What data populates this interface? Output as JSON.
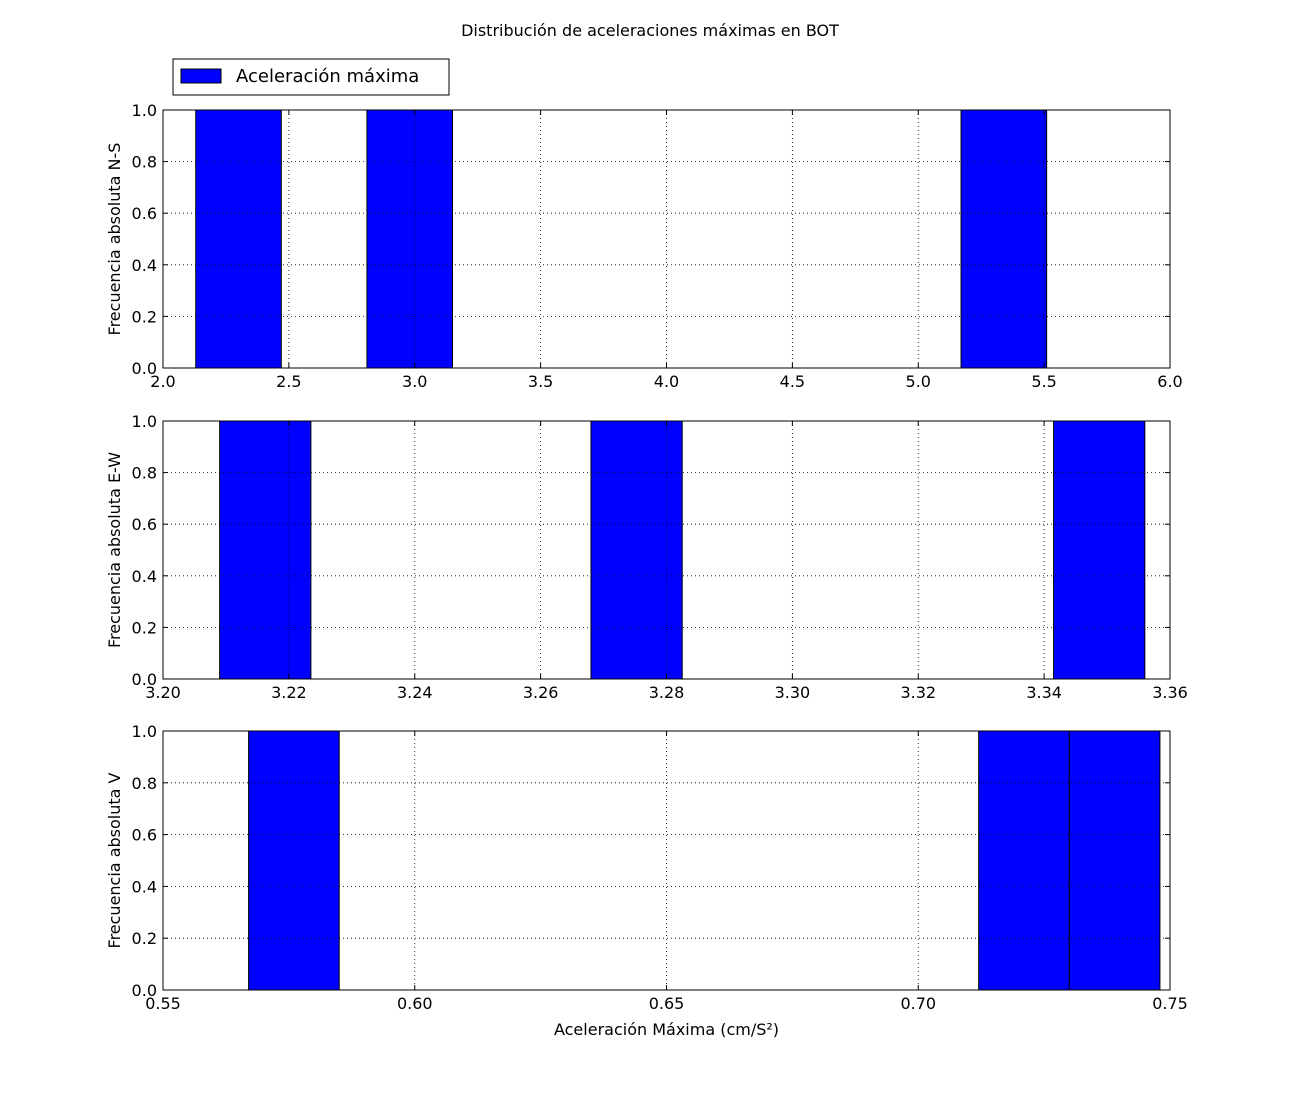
{
  "title": "Distribución de aceleraciones máximas en BOT",
  "legend": {
    "label": "Aceleración máxima",
    "color": "#0000ff",
    "placement": "upper-left"
  },
  "chart_data": [
    {
      "type": "bar",
      "ylabel": "Frecuencia absoluta N-S",
      "xlabel": "",
      "xlim": [
        2.0,
        6.0
      ],
      "ylim": [
        0,
        1.0
      ],
      "xticks": [
        "2.0",
        "2.5",
        "3.0",
        "3.5",
        "4.0",
        "4.5",
        "5.0",
        "5.5",
        "6.0"
      ],
      "yticks": [
        "0.0",
        "0.2",
        "0.4",
        "0.6",
        "0.8",
        "1.0"
      ],
      "grid": true,
      "bars": [
        {
          "start": 2.13,
          "end": 2.47,
          "value": 1
        },
        {
          "start": 2.81,
          "end": 3.15,
          "value": 1
        },
        {
          "start": 5.17,
          "end": 5.51,
          "value": 1
        }
      ]
    },
    {
      "type": "bar",
      "ylabel": "Frecuencia absoluta E-W",
      "xlabel": "",
      "xlim": [
        3.2,
        3.36
      ],
      "ylim": [
        0,
        1.0
      ],
      "xticks": [
        "3.20",
        "3.22",
        "3.24",
        "3.26",
        "3.28",
        "3.30",
        "3.32",
        "3.34",
        "3.36"
      ],
      "yticks": [
        "0.0",
        "0.2",
        "0.4",
        "0.6",
        "0.8",
        "1.0"
      ],
      "grid": true,
      "bars": [
        {
          "start": 3.209,
          "end": 3.2235,
          "value": 1
        },
        {
          "start": 3.268,
          "end": 3.2825,
          "value": 1
        },
        {
          "start": 3.3415,
          "end": 3.356,
          "value": 1
        }
      ]
    },
    {
      "type": "bar",
      "ylabel": "Frecuencia absoluta V",
      "xlabel": "Aceleración Máxima (cm/S²)",
      "xlim": [
        0.55,
        0.75
      ],
      "ylim": [
        0,
        1.0
      ],
      "xticks": [
        "0.55",
        "0.60",
        "0.65",
        "0.70",
        "0.75"
      ],
      "yticks": [
        "0.0",
        "0.2",
        "0.4",
        "0.6",
        "0.8",
        "1.0"
      ],
      "grid": true,
      "bars": [
        {
          "start": 0.567,
          "end": 0.585,
          "value": 1
        },
        {
          "start": 0.712,
          "end": 0.73,
          "value": 1
        },
        {
          "start": 0.73,
          "end": 0.748,
          "value": 1
        }
      ]
    }
  ]
}
